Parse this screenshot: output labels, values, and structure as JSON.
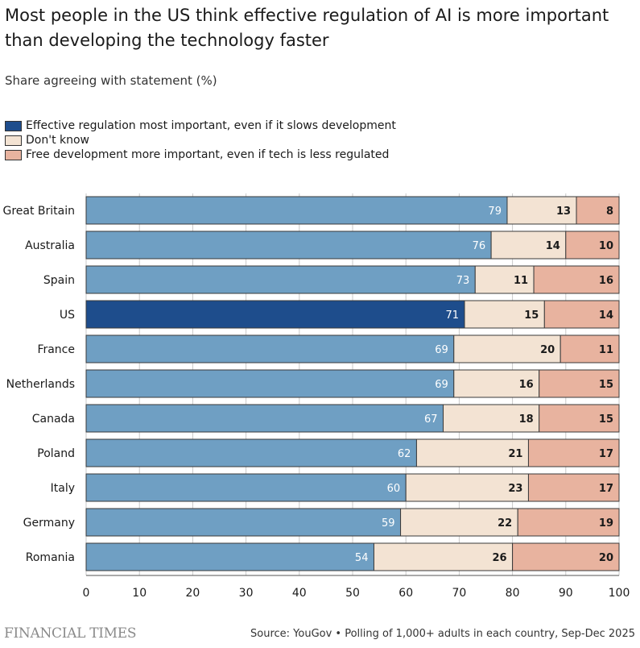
{
  "title": "Most people in the US think effective regulation of AI is more important than developing the technology faster",
  "subtitle": "Share agreeing with statement (%)",
  "colors": {
    "regulation": "#6f9fc3",
    "regulation_highlight": "#1e4d8c",
    "dont_know": "#f3e3d3",
    "free_dev": "#e8b39f",
    "grid": "#c8c8c8"
  },
  "legend": [
    {
      "label": "Effective regulation most important, even if it slows development",
      "color": "#1e4d8c"
    },
    {
      "label": "Don't know",
      "color": "#f3e3d3"
    },
    {
      "label": "Free development more important, even if tech is less regulated",
      "color": "#e8b39f"
    }
  ],
  "chart_data": {
    "type": "bar",
    "orientation": "horizontal",
    "stacked": true,
    "categories": [
      "Great Britain",
      "Australia",
      "Spain",
      "US",
      "France",
      "Netherlands",
      "Canada",
      "Poland",
      "Italy",
      "Germany",
      "Romania"
    ],
    "highlight": "US",
    "series": [
      {
        "name": "Effective regulation most important, even if it slows development",
        "values": [
          79,
          76,
          73,
          71,
          69,
          69,
          67,
          62,
          60,
          59,
          54
        ]
      },
      {
        "name": "Don't know",
        "values": [
          13,
          14,
          11,
          15,
          20,
          16,
          18,
          21,
          23,
          22,
          26
        ]
      },
      {
        "name": "Free development more important, even if tech is less regulated",
        "values": [
          8,
          10,
          16,
          14,
          11,
          15,
          15,
          17,
          17,
          19,
          20
        ]
      }
    ],
    "xlim": [
      0,
      100
    ],
    "xticks": [
      0,
      10,
      20,
      30,
      40,
      50,
      60,
      70,
      80,
      90,
      100
    ],
    "grid": true
  },
  "footer": {
    "brand": "FINANCIAL TIMES",
    "source": "Source: YouGov • Polling of 1,000+ adults in each country, Sep-Dec 2025"
  }
}
